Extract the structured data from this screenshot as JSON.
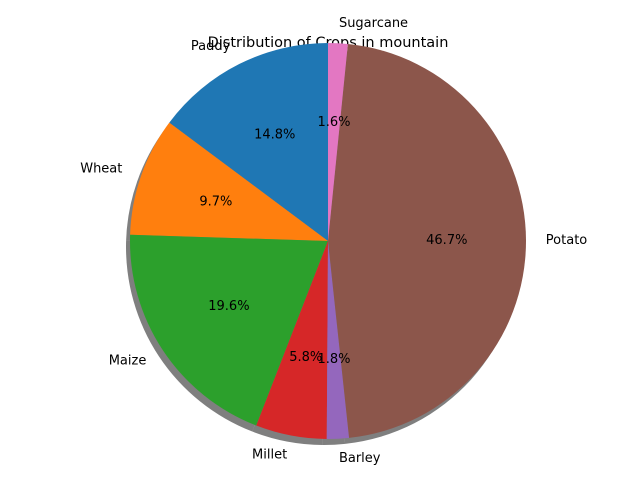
{
  "chart_data": {
    "type": "pie",
    "title": "Distribution of Crops in mountain",
    "categories": [
      "Paddy",
      "Wheat",
      "Maize",
      "Millet",
      "Barley",
      "Potato",
      "Sugarcane"
    ],
    "values": [
      14.8,
      9.7,
      19.6,
      5.8,
      1.8,
      46.7,
      1.6
    ],
    "percent_labels": [
      "14.8%",
      "9.7%",
      "19.6%",
      "5.8%",
      "1.8%",
      "46.7%",
      "1.6%"
    ],
    "colors": [
      "#1f77b4",
      "#ff7f0e",
      "#2ca02c",
      "#d62728",
      "#9467bd",
      "#8c564b",
      "#e377c2"
    ],
    "shadow": true,
    "start_angle_deg": 90,
    "direction": "counterclockwise"
  }
}
